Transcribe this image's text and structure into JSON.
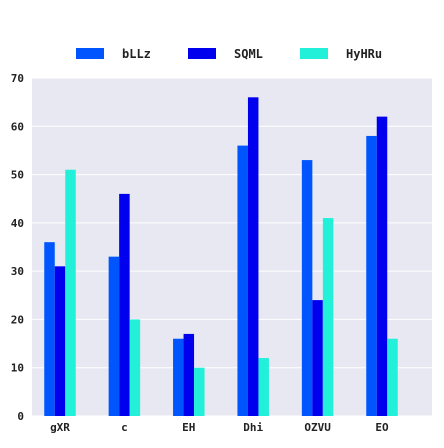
{
  "chart_data": {
    "type": "bar",
    "title": "",
    "xlabel": "",
    "ylabel": "",
    "categories": [
      "gXR",
      "c",
      "EH",
      "Dhi",
      "OZVU",
      "EO"
    ],
    "series": [
      {
        "name": "bLLz",
        "color": "#0055ff",
        "values": [
          36,
          33,
          16,
          56,
          53,
          58
        ]
      },
      {
        "name": "SQML",
        "color": "#0000ee",
        "values": [
          31,
          46,
          17,
          66,
          24,
          62
        ]
      },
      {
        "name": "HyHRu",
        "color": "#22f0d8",
        "values": [
          51,
          20,
          10,
          12,
          41,
          16
        ]
      }
    ],
    "ylim": [
      0,
      70
    ],
    "yticks": [
      0,
      10,
      20,
      30,
      40,
      50,
      60,
      70
    ],
    "grid": true,
    "grid_color": "#ffffff",
    "background_color": "#e8e8f2",
    "legend_position": "top-center"
  }
}
